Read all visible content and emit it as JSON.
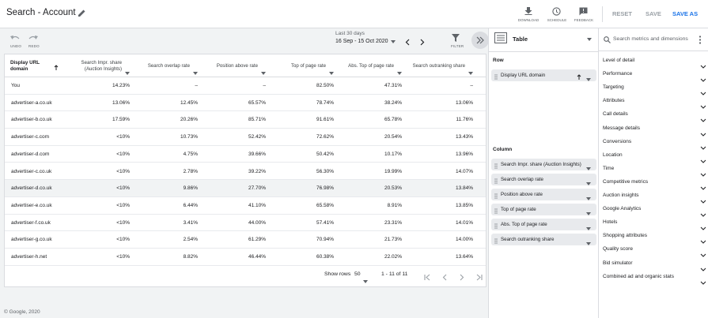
{
  "header": {
    "title": "Search - Account",
    "actions": [
      "DOWNLOAD",
      "SCHEDULE",
      "FEEDBACK"
    ],
    "buttons": [
      "RESET",
      "SAVE",
      "SAVE AS"
    ]
  },
  "toolbar": {
    "undo": "UNDO",
    "redo": "REDO",
    "date_range_label": "Last 30 days",
    "date_range": "16 Sep - 15 Oct 2020",
    "filter": "FILTER"
  },
  "table": {
    "columns": [
      "Display URL domain",
      "Search Impr. share (Auction Insights)",
      "Search overlap rate",
      "Position above rate",
      "Top of page rate",
      "Abs. Top of page rate",
      "Search outranking share"
    ],
    "rows": [
      [
        "You",
        "14.23%",
        "–",
        "–",
        "82.50%",
        "47.31%",
        "–"
      ],
      [
        "advertiser-a.co.uk",
        "13.06%",
        "12.45%",
        "65.57%",
        "78.74%",
        "38.24%",
        "13.06%"
      ],
      [
        "advertiser-b.co.uk",
        "17.59%",
        "20.26%",
        "85.71%",
        "91.61%",
        "65.78%",
        "11.76%"
      ],
      [
        "advertiser-c.com",
        "<10%",
        "10.73%",
        "52.42%",
        "72.62%",
        "20.54%",
        "13.43%"
      ],
      [
        "advertiser-d.com",
        "<10%",
        "4.75%",
        "39.66%",
        "50.42%",
        "10.17%",
        "13.96%"
      ],
      [
        "advertiser-c.co.uk",
        "<10%",
        "2.78%",
        "39.22%",
        "56.30%",
        "19.99%",
        "14.07%"
      ],
      [
        "advertiser-d.co.uk",
        "<10%",
        "9.86%",
        "27.70%",
        "76.98%",
        "20.53%",
        "13.84%"
      ],
      [
        "advertiser-e.co.uk",
        "<10%",
        "6.44%",
        "41.10%",
        "65.58%",
        "8.91%",
        "13.85%"
      ],
      [
        "advertiser-f.co.uk",
        "<10%",
        "3.41%",
        "44.00%",
        "57.41%",
        "23.31%",
        "14.01%"
      ],
      [
        "advertiser-g.co.uk",
        "<10%",
        "2.54%",
        "61.29%",
        "70.94%",
        "21.73%",
        "14.00%"
      ],
      [
        "advertiser-h.net",
        "<10%",
        "8.82%",
        "46.44%",
        "60.38%",
        "22.02%",
        "13.64%"
      ]
    ]
  },
  "pagination": {
    "show_rows_label": "Show rows",
    "rows_per_page": "50",
    "range": "1 - 11 of 11"
  },
  "editor": {
    "view": "Table",
    "row_label": "Row",
    "row_items": [
      "Display URL domain"
    ],
    "column_label": "Column",
    "column_items": [
      "Search Impr. share (Auction Insights)",
      "Search overlap rate",
      "Position above rate",
      "Top of page rate",
      "Abs. Top of page rate",
      "Search outranking share"
    ]
  },
  "sidebar": {
    "search_placeholder": "Search metrics and dimensions",
    "categories": [
      "Level of detail",
      "Performance",
      "Targeting",
      "Attributes",
      "Call details",
      "Message details",
      "Conversions",
      "Location",
      "Time",
      "Competitive metrics",
      "Auction insights",
      "Google Analytics",
      "Hotels",
      "Shopping attributes",
      "Quality score",
      "Bid simulator",
      "Combined ad and organic stats"
    ]
  },
  "footer": {
    "copyright": "© Google, 2020"
  }
}
